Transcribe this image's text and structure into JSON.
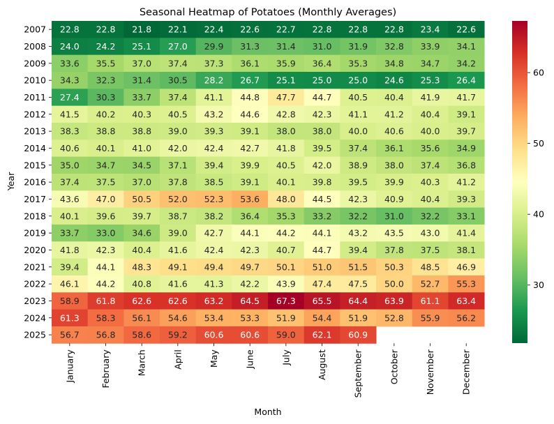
{
  "chart_data": {
    "type": "heatmap",
    "title": "Seasonal Heatmap of Potatoes (Monthly Averages)",
    "xlabel": "Month",
    "ylabel": "Year",
    "columns": [
      "January",
      "February",
      "March",
      "April",
      "May",
      "June",
      "July",
      "August",
      "September",
      "October",
      "November",
      "December"
    ],
    "rows": [
      "2007",
      "2008",
      "2009",
      "2010",
      "2011",
      "2012",
      "2013",
      "2014",
      "2015",
      "2016",
      "2017",
      "2018",
      "2019",
      "2020",
      "2021",
      "2022",
      "2023",
      "2024",
      "2025"
    ],
    "values": [
      [
        22.8,
        22.8,
        21.8,
        22.1,
        22.4,
        22.6,
        22.7,
        22.8,
        22.8,
        22.8,
        23.4,
        22.6
      ],
      [
        24.0,
        24.2,
        25.1,
        27.0,
        29.9,
        31.3,
        31.4,
        31.0,
        31.9,
        32.8,
        33.9,
        34.1
      ],
      [
        33.6,
        35.5,
        37.0,
        37.4,
        37.3,
        36.1,
        35.9,
        36.4,
        35.3,
        34.8,
        34.7,
        34.2
      ],
      [
        34.3,
        32.3,
        31.4,
        30.5,
        28.2,
        26.7,
        25.1,
        25.0,
        25.0,
        24.6,
        25.3,
        26.4
      ],
      [
        27.4,
        30.3,
        33.7,
        37.4,
        41.1,
        44.8,
        47.7,
        44.7,
        40.5,
        40.4,
        41.9,
        41.7
      ],
      [
        41.5,
        40.2,
        40.3,
        40.5,
        43.2,
        44.6,
        42.8,
        42.3,
        41.1,
        41.2,
        40.4,
        39.1
      ],
      [
        38.3,
        38.8,
        38.8,
        39.0,
        39.3,
        39.1,
        38.0,
        38.0,
        40.0,
        40.6,
        40.0,
        39.7
      ],
      [
        40.6,
        40.1,
        41.0,
        42.0,
        42.4,
        42.7,
        41.8,
        39.5,
        37.4,
        36.1,
        35.6,
        34.9
      ],
      [
        35.0,
        34.7,
        34.5,
        37.1,
        39.4,
        39.9,
        40.5,
        42.0,
        38.9,
        38.0,
        37.4,
        36.8
      ],
      [
        37.4,
        37.5,
        37.0,
        37.8,
        38.5,
        39.1,
        40.1,
        39.8,
        39.5,
        39.9,
        40.3,
        41.2
      ],
      [
        43.6,
        47.0,
        50.5,
        52.0,
        52.3,
        53.6,
        48.0,
        44.5,
        42.3,
        40.9,
        40.4,
        39.3
      ],
      [
        40.1,
        39.6,
        39.7,
        38.7,
        38.2,
        36.4,
        35.3,
        33.2,
        32.2,
        31.0,
        32.2,
        33.1
      ],
      [
        33.7,
        33.0,
        34.6,
        39.0,
        42.7,
        44.1,
        44.2,
        44.1,
        43.2,
        43.5,
        43.0,
        41.4
      ],
      [
        41.8,
        42.3,
        40.4,
        41.6,
        42.4,
        42.3,
        40.7,
        44.7,
        39.4,
        37.8,
        37.5,
        38.1
      ],
      [
        39.4,
        44.1,
        48.3,
        49.1,
        49.4,
        49.7,
        50.1,
        51.0,
        51.5,
        50.3,
        48.5,
        46.9
      ],
      [
        46.1,
        44.2,
        40.8,
        41.6,
        41.3,
        42.2,
        43.9,
        47.4,
        47.5,
        50.0,
        52.7,
        55.3
      ],
      [
        58.9,
        61.8,
        62.6,
        62.6,
        63.2,
        64.5,
        67.3,
        65.5,
        64.4,
        63.9,
        61.1,
        63.4
      ],
      [
        61.3,
        58.3,
        56.1,
        54.6,
        53.4,
        53.3,
        51.9,
        54.4,
        51.9,
        52.8,
        55.9,
        56.2
      ],
      [
        56.7,
        56.8,
        58.6,
        59.2,
        60.6,
        60.6,
        59.0,
        62.1,
        60.9,
        null,
        null,
        null
      ]
    ],
    "value_range": [
      21.8,
      67.3
    ],
    "colormap": "RdYlGn_r",
    "colorbar_ticks": [
      30,
      40,
      50,
      60
    ],
    "annotations": "cell values shown with one decimal"
  }
}
